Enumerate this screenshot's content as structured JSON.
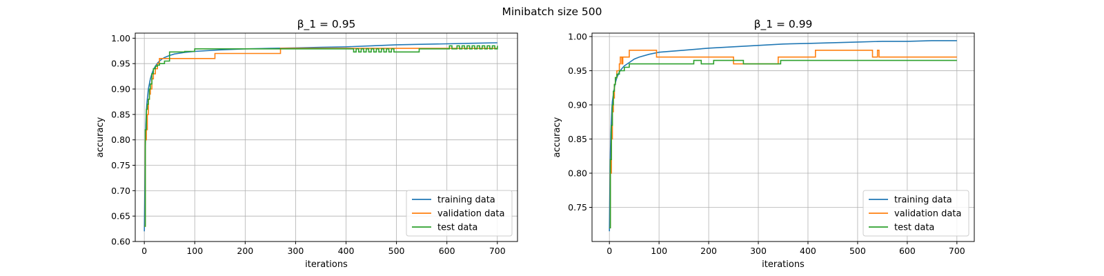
{
  "figure": {
    "suptitle": "Minibatch size 500"
  },
  "chart_data": [
    {
      "type": "line",
      "title": "β_1 = 0.95",
      "xlabel": "iterations",
      "ylabel": "accuracy",
      "xlim": [
        -18,
        740
      ],
      "ylim": [
        0.6,
        1.01
      ],
      "xticks": [
        0,
        100,
        200,
        300,
        400,
        500,
        600,
        700
      ],
      "yticks": [
        0.6,
        0.65,
        0.7,
        0.75,
        0.8,
        0.85,
        0.9,
        0.95,
        1.0
      ],
      "grid": true,
      "legend_position": "lower-right",
      "series": [
        {
          "name": "training data",
          "color": "#1f77b4",
          "kind": "smooth",
          "x": [
            0,
            1,
            2,
            3,
            4,
            5,
            6,
            7,
            8,
            10,
            12,
            15,
            18,
            22,
            26,
            30,
            35,
            40,
            50,
            60,
            80,
            100,
            150,
            200,
            250,
            300,
            350,
            400,
            450,
            500,
            550,
            600,
            650,
            700
          ],
          "y": [
            0.62,
            0.7,
            0.78,
            0.83,
            0.855,
            0.87,
            0.88,
            0.89,
            0.9,
            0.91,
            0.92,
            0.93,
            0.938,
            0.945,
            0.951,
            0.955,
            0.959,
            0.962,
            0.966,
            0.969,
            0.972,
            0.974,
            0.977,
            0.979,
            0.98,
            0.981,
            0.982,
            0.983,
            0.985,
            0.987,
            0.988,
            0.989,
            0.99,
            0.991
          ]
        },
        {
          "name": "validation data",
          "color": "#ff7f0e",
          "kind": "step",
          "x": [
            0,
            2,
            4,
            6,
            8,
            10,
            12,
            15,
            18,
            22,
            26,
            30,
            40,
            60,
            100,
            140,
            200,
            270,
            300,
            400,
            500,
            600,
            700
          ],
          "y": [
            0.63,
            0.8,
            0.82,
            0.85,
            0.88,
            0.89,
            0.9,
            0.92,
            0.93,
            0.94,
            0.95,
            0.96,
            0.96,
            0.96,
            0.96,
            0.97,
            0.97,
            0.98,
            0.98,
            0.98,
            0.98,
            0.98,
            0.98
          ]
        },
        {
          "name": "test data",
          "color": "#2ca02c",
          "kind": "step",
          "x": [
            0,
            2,
            4,
            6,
            8,
            10,
            12,
            15,
            18,
            22,
            26,
            30,
            40,
            50,
            60,
            80,
            100,
            200,
            300,
            415,
            420,
            425,
            430,
            435,
            440,
            445,
            450,
            455,
            460,
            465,
            470,
            475,
            480,
            485,
            490,
            495,
            500,
            540,
            545,
            550,
            600,
            605,
            610,
            620,
            625,
            630,
            635,
            640,
            645,
            650,
            655,
            660,
            665,
            670,
            675,
            680,
            685,
            690,
            695,
            700
          ],
          "y": [
            0.63,
            0.82,
            0.86,
            0.87,
            0.88,
            0.9,
            0.91,
            0.93,
            0.94,
            0.945,
            0.947,
            0.95,
            0.955,
            0.973,
            0.973,
            0.974,
            0.979,
            0.979,
            0.979,
            0.973,
            0.979,
            0.973,
            0.979,
            0.973,
            0.979,
            0.973,
            0.979,
            0.973,
            0.979,
            0.973,
            0.979,
            0.973,
            0.979,
            0.973,
            0.979,
            0.973,
            0.973,
            0.973,
            0.979,
            0.979,
            0.979,
            0.985,
            0.979,
            0.985,
            0.979,
            0.985,
            0.979,
            0.985,
            0.979,
            0.985,
            0.979,
            0.985,
            0.979,
            0.985,
            0.979,
            0.985,
            0.979,
            0.985,
            0.979,
            0.985
          ]
        }
      ]
    },
    {
      "type": "line",
      "title": "β_1 = 0.99",
      "xlabel": "iterations",
      "ylabel": "accuracy",
      "xlim": [
        -35,
        735
      ],
      "ylim": [
        0.7,
        1.005
      ],
      "xticks": [
        0,
        100,
        200,
        300,
        400,
        500,
        600,
        700
      ],
      "yticks": [
        0.75,
        0.8,
        0.85,
        0.9,
        0.95,
        1.0
      ],
      "grid": true,
      "legend_position": "lower-right",
      "series": [
        {
          "name": "training data",
          "color": "#1f77b4",
          "kind": "smooth",
          "x": [
            0,
            1,
            2,
            3,
            4,
            5,
            6,
            8,
            10,
            12,
            15,
            20,
            25,
            30,
            40,
            50,
            60,
            80,
            100,
            150,
            200,
            250,
            300,
            350,
            400,
            450,
            500,
            550,
            600,
            650,
            700
          ],
          "y": [
            0.715,
            0.78,
            0.83,
            0.86,
            0.88,
            0.895,
            0.905,
            0.915,
            0.925,
            0.932,
            0.94,
            0.948,
            0.953,
            0.957,
            0.962,
            0.967,
            0.97,
            0.974,
            0.977,
            0.98,
            0.983,
            0.985,
            0.987,
            0.989,
            0.99,
            0.991,
            0.992,
            0.993,
            0.993,
            0.994,
            0.994
          ]
        },
        {
          "name": "validation data",
          "color": "#ff7f0e",
          "kind": "step",
          "x": [
            0,
            2,
            4,
            6,
            8,
            10,
            12,
            15,
            20,
            22,
            25,
            27,
            30,
            40,
            95,
            250,
            270,
            340,
            415,
            530,
            535,
            540,
            543,
            700
          ],
          "y": [
            0.72,
            0.8,
            0.85,
            0.89,
            0.91,
            0.93,
            0.94,
            0.95,
            0.96,
            0.97,
            0.96,
            0.97,
            0.97,
            0.98,
            0.97,
            0.96,
            0.96,
            0.97,
            0.98,
            0.97,
            0.97,
            0.98,
            0.97,
            0.97
          ]
        },
        {
          "name": "test data",
          "color": "#2ca02c",
          "kind": "step",
          "x": [
            0,
            2,
            4,
            6,
            8,
            10,
            12,
            15,
            20,
            30,
            40,
            170,
            185,
            210,
            270,
            345,
            700
          ],
          "y": [
            0.72,
            0.82,
            0.87,
            0.9,
            0.92,
            0.93,
            0.94,
            0.945,
            0.95,
            0.955,
            0.96,
            0.965,
            0.96,
            0.965,
            0.96,
            0.965,
            0.965
          ]
        }
      ]
    }
  ]
}
